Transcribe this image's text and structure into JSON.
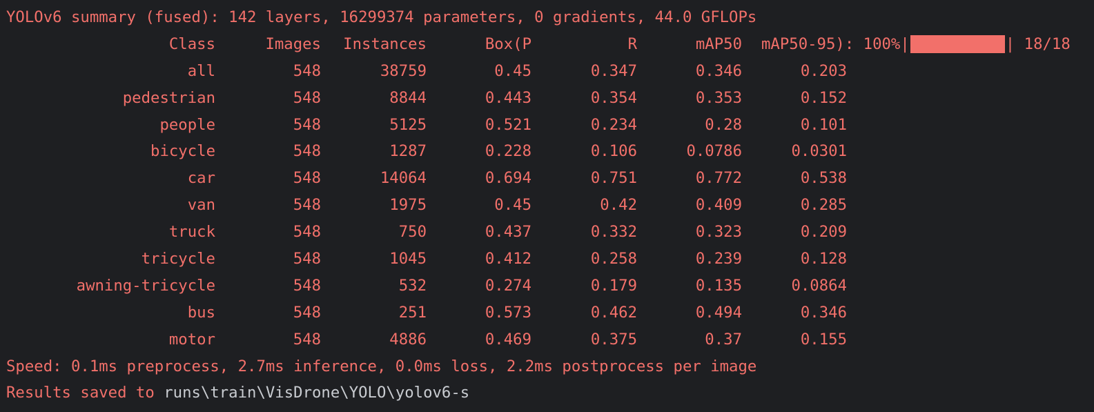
{
  "summary_line": "YOLOv6 summary (fused): 142 layers, 16299374 parameters, 0 gradients, 44.0 GFLOPs",
  "header": {
    "class": "Class",
    "images": "Images",
    "instances": "Instances",
    "precision": "Box(P",
    "recall": "R",
    "map50": "mAP50",
    "map50_95": "mAP50-95): 100%|",
    "progress_fraction": 1.0,
    "progress_end": "| 18/18"
  },
  "rows": [
    {
      "class": "all",
      "images": "548",
      "instances": "38759",
      "p": "0.45",
      "r": "0.347",
      "map50": "0.346",
      "map50_95": "0.203"
    },
    {
      "class": "pedestrian",
      "images": "548",
      "instances": "8844",
      "p": "0.443",
      "r": "0.354",
      "map50": "0.353",
      "map50_95": "0.152"
    },
    {
      "class": "people",
      "images": "548",
      "instances": "5125",
      "p": "0.521",
      "r": "0.234",
      "map50": "0.28",
      "map50_95": "0.101"
    },
    {
      "class": "bicycle",
      "images": "548",
      "instances": "1287",
      "p": "0.228",
      "r": "0.106",
      "map50": "0.0786",
      "map50_95": "0.0301"
    },
    {
      "class": "car",
      "images": "548",
      "instances": "14064",
      "p": "0.694",
      "r": "0.751",
      "map50": "0.772",
      "map50_95": "0.538"
    },
    {
      "class": "van",
      "images": "548",
      "instances": "1975",
      "p": "0.45",
      "r": "0.42",
      "map50": "0.409",
      "map50_95": "0.285"
    },
    {
      "class": "truck",
      "images": "548",
      "instances": "750",
      "p": "0.437",
      "r": "0.332",
      "map50": "0.323",
      "map50_95": "0.209"
    },
    {
      "class": "tricycle",
      "images": "548",
      "instances": "1045",
      "p": "0.412",
      "r": "0.258",
      "map50": "0.239",
      "map50_95": "0.128"
    },
    {
      "class": "awning-tricycle",
      "images": "548",
      "instances": "532",
      "p": "0.274",
      "r": "0.179",
      "map50": "0.135",
      "map50_95": "0.0864"
    },
    {
      "class": "bus",
      "images": "548",
      "instances": "251",
      "p": "0.573",
      "r": "0.462",
      "map50": "0.494",
      "map50_95": "0.346"
    },
    {
      "class": "motor",
      "images": "548",
      "instances": "4886",
      "p": "0.469",
      "r": "0.375",
      "map50": "0.37",
      "map50_95": "0.155"
    }
  ],
  "speed_line": "Speed: 0.1ms preprocess, 2.7ms inference, 0.0ms loss, 2.2ms postprocess per image",
  "results": {
    "prefix": "Results saved to ",
    "path": "runs\\train\\VisDrone\\YOLO\\yolov6-s"
  },
  "colors": {
    "background": "#1e1f22",
    "text": "#f2706a",
    "path": "#c9ccd1"
  }
}
